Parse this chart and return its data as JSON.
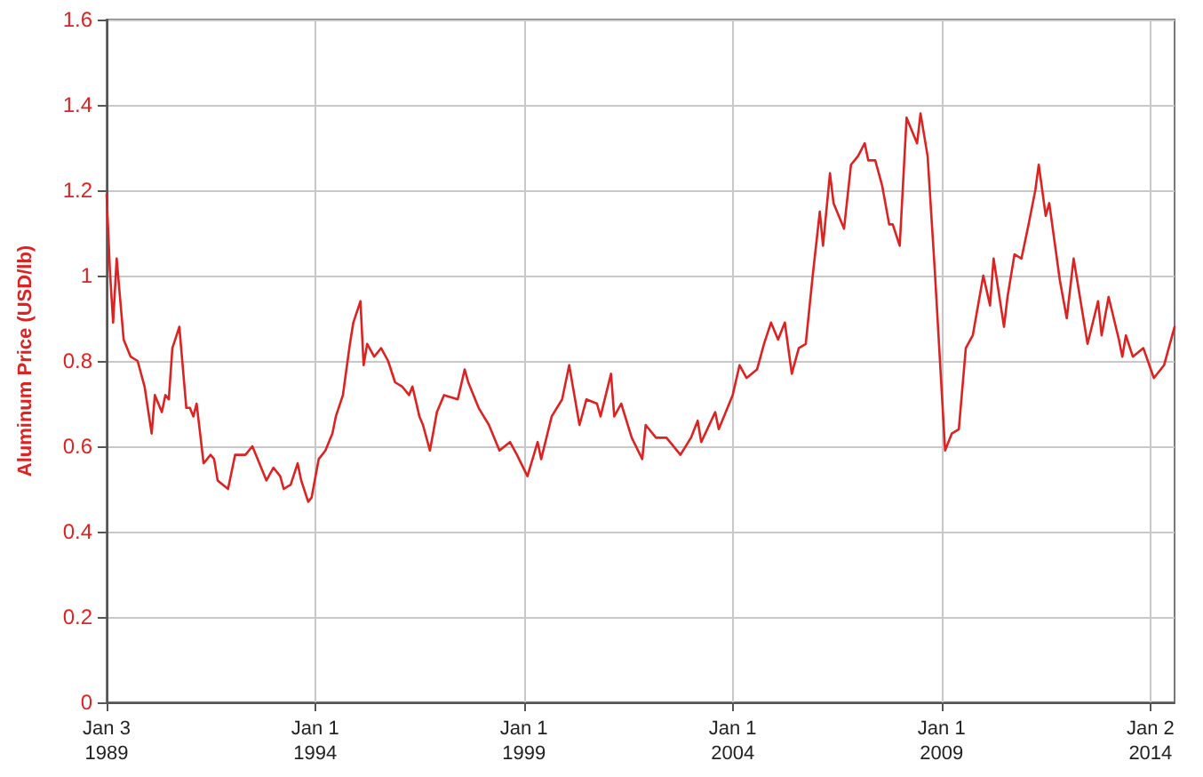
{
  "chart_data": {
    "type": "line",
    "ylabel": "Aluminum Price (USD/lb)",
    "x": [
      "1989-01-03",
      "1989-02",
      "1989-03",
      "1989-04",
      "1989-06",
      "1989-08",
      "1989-10",
      "1989-12",
      "1990-02",
      "1990-03",
      "1990-05",
      "1990-06",
      "1990-07",
      "1990-08",
      "1990-10",
      "1990-12",
      "1991-01",
      "1991-02",
      "1991-03",
      "1991-04",
      "1991-05",
      "1991-07",
      "1991-08",
      "1991-09",
      "1991-12",
      "1992-02",
      "1992-05",
      "1992-07",
      "1992-11",
      "1993-01",
      "1993-03",
      "1993-04",
      "1993-06",
      "1993-08",
      "1993-09",
      "1993-11",
      "1993-12",
      "1994-02",
      "1994-04",
      "1994-06",
      "1994-07",
      "1994-09",
      "1994-11",
      "1994-12",
      "1995-02",
      "1995-03",
      "1995-04",
      "1995-06",
      "1995-08",
      "1995-10",
      "1995-12",
      "1996-02",
      "1996-04",
      "1996-05",
      "1996-07",
      "1996-08",
      "1996-10",
      "1996-12",
      "1997-02",
      "1997-06",
      "1997-08",
      "1997-09",
      "1997-12",
      "1998-03",
      "1998-06",
      "1998-09",
      "1998-11",
      "1999-02",
      "1999-05",
      "1999-06",
      "1999-09",
      "1999-12",
      "2000-02",
      "2000-05",
      "2000-07",
      "2000-10",
      "2000-11",
      "2001-02",
      "2001-03",
      "2001-05",
      "2001-08",
      "2001-11",
      "2001-12",
      "2002-03",
      "2002-06",
      "2002-10",
      "2003-01",
      "2003-03",
      "2003-04",
      "2003-08",
      "2003-09",
      "2004-01",
      "2004-03",
      "2004-05",
      "2004-08",
      "2004-10",
      "2004-12",
      "2005-02",
      "2005-04",
      "2005-06",
      "2005-08",
      "2005-10",
      "2005-12",
      "2006-02",
      "2006-03",
      "2006-05",
      "2006-06",
      "2006-09",
      "2006-11",
      "2007-01",
      "2007-03",
      "2007-04",
      "2007-06",
      "2007-08",
      "2007-10",
      "2007-11",
      "2008-01",
      "2008-03",
      "2008-06",
      "2008-07",
      "2008-09",
      "2008-11",
      "2009-02",
      "2009-04",
      "2009-06",
      "2009-08",
      "2009-10",
      "2010-01",
      "2010-03",
      "2010-04",
      "2010-07",
      "2010-08",
      "2010-10",
      "2010-12",
      "2011-02",
      "2011-04",
      "2011-05",
      "2011-07",
      "2011-08",
      "2011-11",
      "2012-01",
      "2012-03",
      "2012-05",
      "2012-07",
      "2012-10",
      "2012-11",
      "2013-01",
      "2013-04",
      "2013-05",
      "2013-06",
      "2013-08",
      "2013-11",
      "2014-02",
      "2014-05",
      "2014-08"
    ],
    "series": [
      {
        "color": "#dd2222",
        "values": [
          1.19,
          1.01,
          0.89,
          1.04,
          0.85,
          0.81,
          0.8,
          0.74,
          0.63,
          0.72,
          0.68,
          0.72,
          0.71,
          0.83,
          0.88,
          0.69,
          0.69,
          0.67,
          0.7,
          0.63,
          0.56,
          0.58,
          0.57,
          0.52,
          0.5,
          0.58,
          0.58,
          0.6,
          0.52,
          0.55,
          0.53,
          0.5,
          0.51,
          0.56,
          0.52,
          0.47,
          0.48,
          0.57,
          0.59,
          0.63,
          0.67,
          0.72,
          0.84,
          0.89,
          0.94,
          0.79,
          0.84,
          0.81,
          0.83,
          0.8,
          0.75,
          0.74,
          0.72,
          0.74,
          0.67,
          0.65,
          0.59,
          0.68,
          0.72,
          0.71,
          0.78,
          0.75,
          0.69,
          0.65,
          0.59,
          0.61,
          0.58,
          0.53,
          0.61,
          0.57,
          0.67,
          0.71,
          0.79,
          0.65,
          0.71,
          0.7,
          0.67,
          0.77,
          0.67,
          0.7,
          0.62,
          0.57,
          0.65,
          0.62,
          0.62,
          0.58,
          0.62,
          0.66,
          0.61,
          0.68,
          0.64,
          0.72,
          0.79,
          0.76,
          0.78,
          0.84,
          0.89,
          0.85,
          0.89,
          0.77,
          0.83,
          0.84,
          1.0,
          1.15,
          1.07,
          1.24,
          1.17,
          1.11,
          1.26,
          1.28,
          1.31,
          1.27,
          1.27,
          1.21,
          1.12,
          1.12,
          1.07,
          1.37,
          1.31,
          1.38,
          1.28,
          1.02,
          0.59,
          0.63,
          0.64,
          0.83,
          0.86,
          1.0,
          0.93,
          1.04,
          0.88,
          0.95,
          1.05,
          1.04,
          1.12,
          1.2,
          1.26,
          1.14,
          1.17,
          0.99,
          0.9,
          1.04,
          0.94,
          0.84,
          0.94,
          0.86,
          0.95,
          0.85,
          0.81,
          0.86,
          0.81,
          0.83,
          0.76,
          0.79,
          0.88
        ]
      }
    ],
    "xlim": [
      "1989-01-03",
      "2014-08"
    ],
    "xticks": [
      {
        "value": "1989-01-03",
        "label": "Jan 3\n1989"
      },
      {
        "value": "1994-01-01",
        "label": "Jan 1\n1994"
      },
      {
        "value": "1999-01-01",
        "label": "Jan 1\n1999"
      },
      {
        "value": "2004-01-01",
        "label": "Jan 1\n2004"
      },
      {
        "value": "2009-01-01",
        "label": "Jan 1\n2009"
      },
      {
        "value": "2014-01-02",
        "label": "Jan 2\n2014"
      }
    ],
    "ylim": [
      0,
      1.6
    ],
    "yticks": [
      0,
      0.2,
      0.4,
      0.6,
      0.8,
      1,
      1.2,
      1.4,
      1.6
    ],
    "grid": true,
    "marker": "none",
    "line_style": "solid"
  }
}
